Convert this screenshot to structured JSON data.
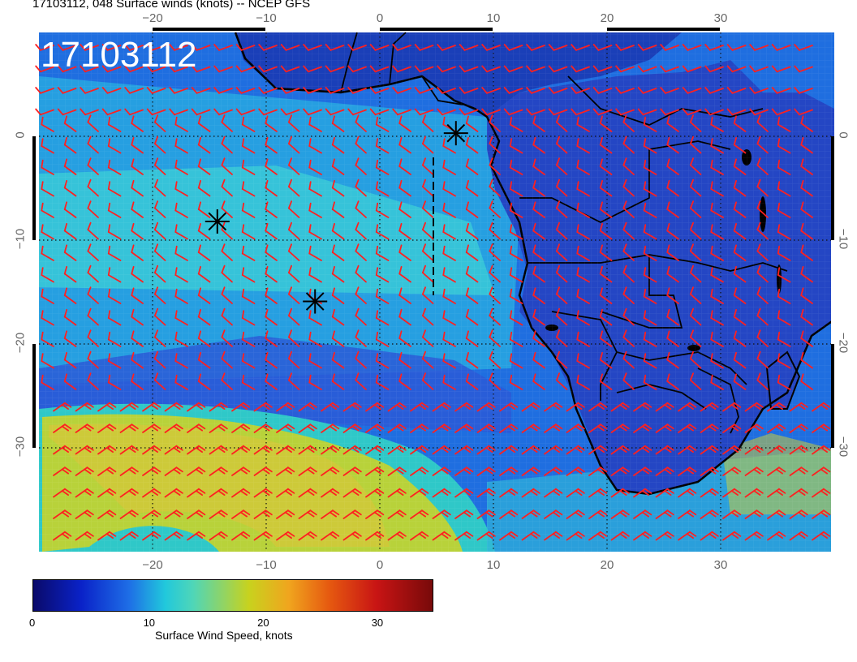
{
  "title": "17103112, 048 Surface winds (knots) -- NCEP GFS",
  "stamp": "17103112",
  "map": {
    "lon_range": [
      -30,
      40
    ],
    "lat_range": [
      -40,
      10
    ],
    "lon_ticks": [
      -20,
      -10,
      0,
      10,
      20,
      30
    ],
    "lat_ticks": [
      0,
      -10,
      -20,
      -30
    ],
    "lon_tick_labels": [
      "−20",
      "−10",
      "0",
      "10",
      "20",
      "30"
    ],
    "lat_tick_labels": [
      "0",
      "−10",
      "−20",
      "−30"
    ],
    "gridlines": "dotted",
    "wind_barb_color": "#ff2020",
    "coastline_color": "#000000",
    "markers": [
      {
        "symbol": "star",
        "lon": -14.3,
        "lat": -8.2
      },
      {
        "symbol": "star",
        "lon": -5.7,
        "lat": -15.9
      },
      {
        "symbol": "star",
        "lon": 6.7,
        "lat": 0.3
      }
    ]
  },
  "colorbar": {
    "title": "Surface Wind Speed, knots",
    "tick_labels": [
      "0",
      "10",
      "20",
      "30"
    ],
    "range": [
      0,
      35
    ]
  }
}
